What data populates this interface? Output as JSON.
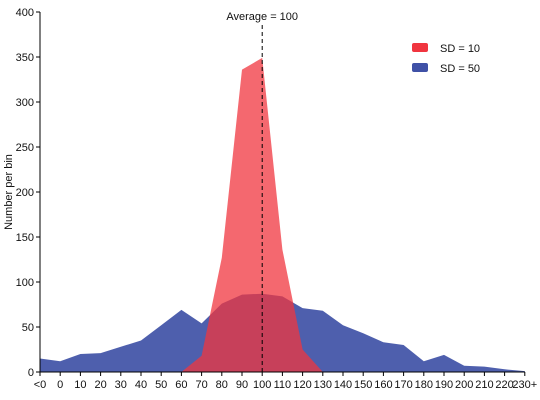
{
  "chart_data": {
    "type": "area",
    "categories": [
      "<0",
      "0",
      "10",
      "20",
      "30",
      "40",
      "50",
      "60",
      "70",
      "80",
      "90",
      "100",
      "110",
      "120",
      "130",
      "140",
      "150",
      "160",
      "170",
      "180",
      "190",
      "200",
      "210",
      "220",
      "230+"
    ],
    "ylabel": "Number per bin",
    "xlabel": "",
    "ylim": [
      0,
      400
    ],
    "yticks": [
      0,
      50,
      100,
      150,
      200,
      250,
      300,
      350,
      400
    ],
    "grid": false,
    "legend_position": "top-right",
    "annotation": {
      "text": "Average = 100",
      "x": 100
    },
    "series": [
      {
        "name": "SD = 50",
        "color": "#3f51a6",
        "values": [
          15,
          12,
          20,
          21,
          28,
          35,
          52,
          69,
          54,
          76,
          86,
          87,
          84,
          71,
          68,
          52,
          43,
          33,
          30,
          12,
          19,
          7,
          6,
          3,
          1
        ]
      },
      {
        "name": "SD = 10",
        "color": "#f0353f",
        "values": [
          0,
          0,
          0,
          0,
          0,
          0,
          0,
          0,
          18,
          127,
          336,
          349,
          136,
          25,
          0,
          0,
          0,
          0,
          0,
          0,
          0,
          0,
          0,
          0,
          0
        ]
      }
    ]
  }
}
